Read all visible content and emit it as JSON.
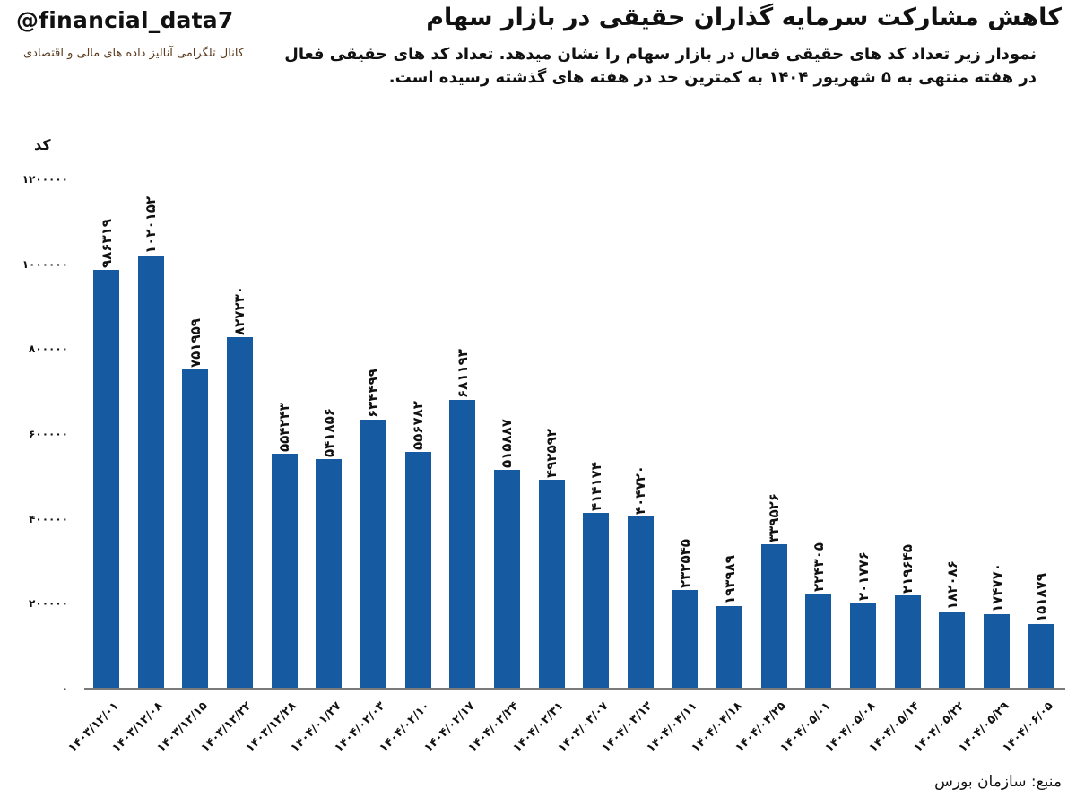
{
  "header": {
    "handle": "@financial_data7",
    "channel_caption": "کانال تلگرامی آنالیز داده های مالی و اقتصادی",
    "title": "کاهش مشارکت سرمایه گذاران حقیقی در بازار سهام",
    "subtitle": "نمودار زیر تعداد کد های حقیقی فعال در بازار سهام را نشان میدهد. تعداد کد های حقیقی فعال در هفته منتهی به ۵ شهریور ۱۴۰۴ به کمترین حد در هفته های گذشته رسیده است."
  },
  "footer": {
    "source": "منبع: سازمان بورس"
  },
  "colors": {
    "bar": "#165ba2",
    "axis": "#7a7a7a",
    "text": "#111111",
    "caption": "#5a3b1e"
  },
  "chart_data": {
    "type": "bar",
    "title": "کاهش مشارکت سرمایه گذاران حقیقی در بازار سهام",
    "xlabel": "",
    "ylabel": "کد",
    "ylim": [
      0,
      1200000
    ],
    "yticks": [
      0,
      200000,
      400000,
      600000,
      800000,
      1000000,
      1200000
    ],
    "ytick_labels": [
      "۰",
      "۲۰۰۰۰۰",
      "۴۰۰۰۰۰",
      "۶۰۰۰۰۰",
      "۸۰۰۰۰۰",
      "۱۰۰۰۰۰۰",
      "۱۲۰۰۰۰۰"
    ],
    "grid": false,
    "legend": null,
    "categories": [
      "۱۴۰۳/۱۲/۰۱",
      "۱۴۰۳/۱۲/۰۸",
      "۱۴۰۳/۱۲/۱۵",
      "۱۴۰۳/۱۲/۲۲",
      "۱۴۰۳/۱۲/۲۸",
      "۱۴۰۴/۰۱/۲۷",
      "۱۴۰۴/۰۲/۰۳",
      "۱۴۰۴/۰۲/۱۰",
      "۱۴۰۴/۰۲/۱۷",
      "۱۴۰۴/۰۲/۲۴",
      "۱۴۰۴/۰۲/۳۱",
      "۱۴۰۴/۰۳/۰۷",
      "۱۴۰۴/۰۳/۱۳",
      "۱۴۰۴/۰۴/۱۱",
      "۱۴۰۴/۰۴/۱۸",
      "۱۴۰۴/۰۴/۲۵",
      "۱۴۰۴/۰۵/۰۱",
      "۱۴۰۴/۰۵/۰۸",
      "۱۴۰۴/۰۵/۱۴",
      "۱۴۰۴/۰۵/۲۲",
      "۱۴۰۴/۰۵/۲۹",
      "۱۴۰۴/۰۶/۰۵"
    ],
    "values": [
      986319,
      1020152,
      751959,
      827230,
      554243,
      541856,
      634499,
      556782,
      681193,
      515887,
      492592,
      414174,
      404720,
      232545,
      193989,
      339526,
      224305,
      201776,
      219645,
      182086,
      174770,
      151879
    ],
    "value_labels": [
      "۹۸۶۳۱۹",
      "۱۰۲۰۱۵۲",
      "۷۵۱۹۵۹",
      "۸۲۷۲۳۰",
      "۵۵۴۲۴۳",
      "۵۴۱۸۵۶",
      "۶۳۴۴۹۹",
      "۵۵۶۷۸۲",
      "۶۸۱۱۹۳",
      "۵۱۵۸۸۷",
      "۴۹۲۵۹۲",
      "۴۱۴۱۷۴",
      "۴۰۴۷۲۰",
      "۲۳۲۵۴۵",
      "۱۹۳۹۸۹",
      "۳۳۹۵۲۶",
      "۲۲۴۳۰۵",
      "۲۰۱۷۷۶",
      "۲۱۹۶۴۵",
      "۱۸۲۰۸۶",
      "۱۷۴۷۷۰",
      "۱۵۱۸۷۹"
    ]
  }
}
